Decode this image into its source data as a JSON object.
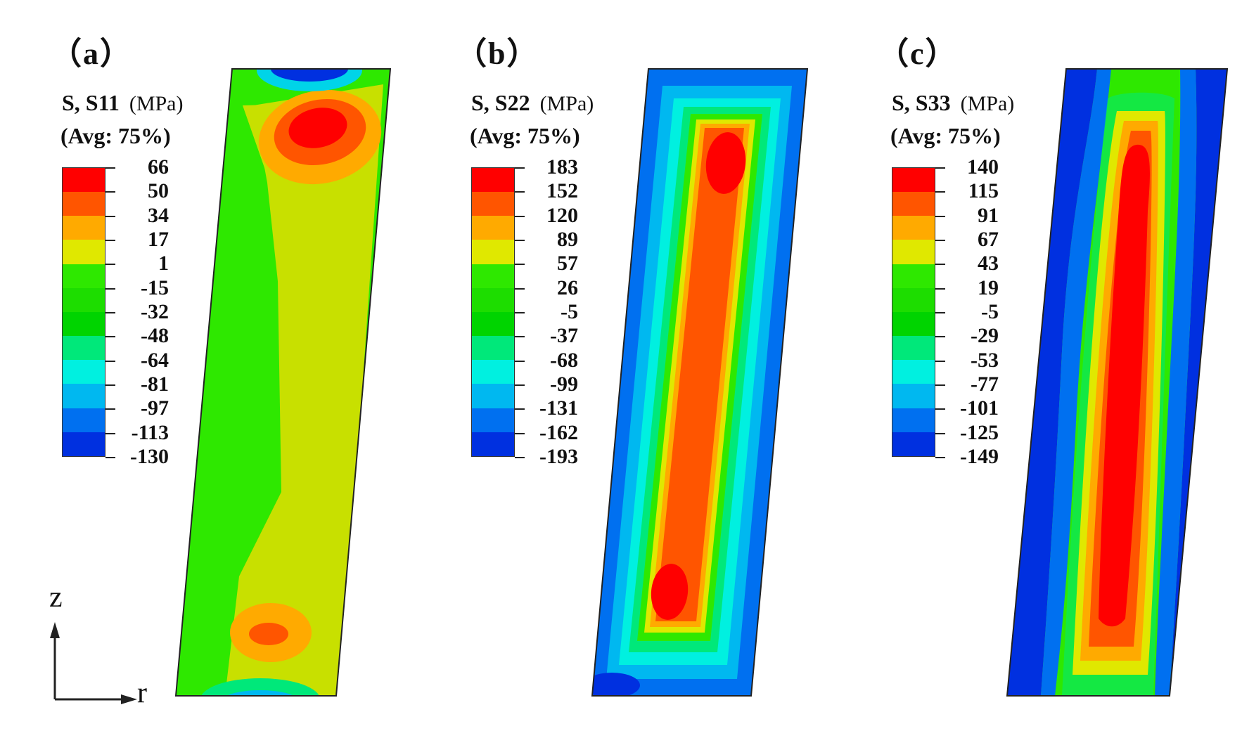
{
  "panels": [
    {
      "label": "（a）",
      "variable": "S, S11",
      "unit": "(MPa)",
      "avg": "(Avg: 75%)",
      "ticks": [
        "66",
        "50",
        "34",
        "17",
        "1",
        "-15",
        "-32",
        "-48",
        "-64",
        "-81",
        "-97",
        "-113",
        "-130"
      ]
    },
    {
      "label": "（b）",
      "variable": "S, S22",
      "unit": "(MPa)",
      "avg": "(Avg: 75%)",
      "ticks": [
        "183",
        "152",
        "120",
        "89",
        "57",
        "26",
        "-5",
        "-37",
        "-68",
        "-99",
        "-131",
        "-162",
        "-193"
      ]
    },
    {
      "label": "（c）",
      "variable": "S, S33",
      "unit": "(MPa)",
      "avg": "(Avg: 75%)",
      "ticks": [
        "140",
        "115",
        "91",
        "67",
        "43",
        "19",
        "-5",
        "-29",
        "-53",
        "-77",
        "-101",
        "-125",
        "-149"
      ]
    }
  ],
  "legend_colors": [
    "#ff0000",
    "#ff5500",
    "#ffaa00",
    "#e0e800",
    "#2ee800",
    "#1ddd00",
    "#00d400",
    "#00e87a",
    "#00f0e0",
    "#00b8f0",
    "#0070f0",
    "#0030e0"
  ],
  "axes": {
    "z_label": "z",
    "r_label": "r"
  }
}
